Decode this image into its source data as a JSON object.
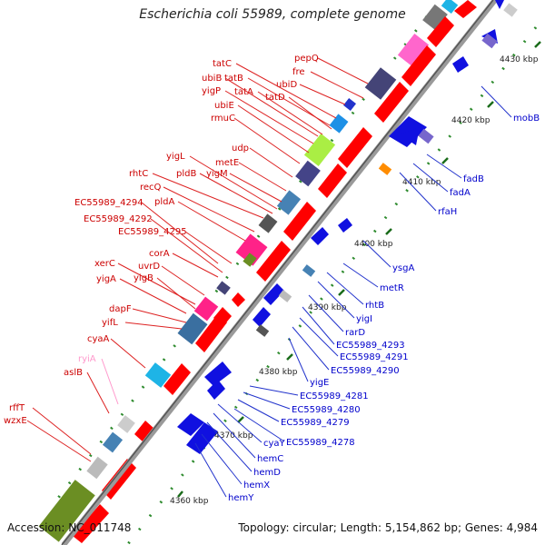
{
  "header": {
    "title": "Escherichia coli 55989, complete genome"
  },
  "footer": {
    "accession": "Accession: NC_011748",
    "topology": "Topology: circular; Length: 5,154,862 bp; Genes: 4,984"
  },
  "colors": {
    "left_label": "#cc0000",
    "right_label": "#0000cc",
    "pink_label": "#ff99cc",
    "backbone": "#9a9a9a",
    "forward_gene": "#ff0000",
    "reverse_gene": "#0000ee",
    "tick": "#228b22"
  },
  "scale_marks": [
    "4360 kbp",
    "4370 kbp",
    "4380 kbp",
    "4390 kbp",
    "4400 kbp",
    "4410 kbp",
    "4420 kbp",
    "4430 kbp"
  ],
  "left_genes": [
    "tatC",
    "tatB",
    "ubiB",
    "ubiD",
    "fre",
    "pepQ",
    "yigP",
    "tatA",
    "tatD",
    "ubiE",
    "rmuC",
    "udp",
    "yigL",
    "metE",
    "rhtC",
    "pldB",
    "yigM",
    "recQ",
    "pldA",
    "EC55989_4294",
    "EC55989_4292",
    "EC55989_4295",
    "corA",
    "xerC",
    "uvrD",
    "yigA",
    "yigB",
    "dapF",
    "yifL",
    "cyaA",
    "ryiA",
    "aslB",
    "rffT",
    "wzxE"
  ],
  "right_genes": [
    "mobB",
    "fadB",
    "fadA",
    "rfaH",
    "ysgA",
    "metR",
    "rhtB",
    "yigI",
    "rarD",
    "EC55989_4293",
    "EC55989_4291",
    "EC55989_4290",
    "yigE",
    "EC55989_4281",
    "EC55989_4280",
    "EC55989_4279",
    "EC55989_4278",
    "cyaY",
    "hemC",
    "hemD",
    "hemX",
    "hemY"
  ]
}
